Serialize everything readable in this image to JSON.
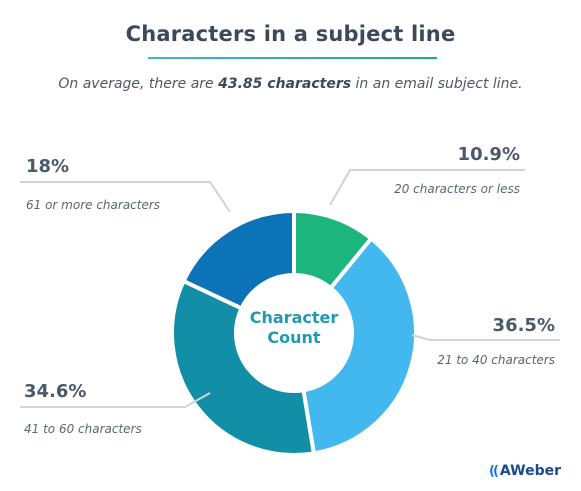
{
  "header": {
    "title": "Characters in a subject line",
    "subtitle_pre": "On average, there are ",
    "subtitle_bold": "43.85 characters",
    "subtitle_post": " in an email subject line."
  },
  "chart_data": {
    "type": "pie",
    "title": "Characters in a subject line",
    "center_label": [
      "Character",
      "Count"
    ],
    "slices": [
      {
        "label": "20 characters or less",
        "value": 10.9,
        "display": "10.9%",
        "color": "#1cb57e"
      },
      {
        "label": "21 to 40 characters",
        "value": 36.5,
        "display": "36.5%",
        "color": "#43b8ef"
      },
      {
        "label": "41 to 60 characters",
        "value": 34.6,
        "display": "34.6%",
        "color": "#128ea6"
      },
      {
        "label": "61 or more characters",
        "value": 18,
        "display": "18%",
        "color": "#0d73b8"
      }
    ],
    "legend": "callouts"
  },
  "brand": {
    "logo_mark": "((",
    "logo_text": "AWeber"
  },
  "colors": {
    "callout_line": "#d0d4d8",
    "title_rule_start": "#3db8c9",
    "title_rule_end": "#1cae7a"
  }
}
